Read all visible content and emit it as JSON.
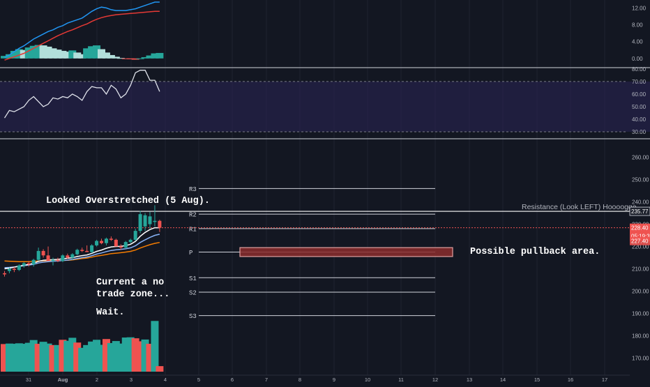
{
  "colors": {
    "background": "#131722",
    "grid": "#1f2330",
    "up": "#26a69a",
    "down": "#ef5350",
    "macd_line": "#2196f3",
    "signal_line": "#e53935",
    "rsi_line": "#e0e3eb",
    "rsi_band": "#2a2556",
    "ema_fast": "#ffffff",
    "ema_mid": "#8ab4f8",
    "ema_slow": "#f57c00",
    "pivot_line": "#d1d4dc",
    "resistance_line": "#ffffff",
    "pullback_zone": "#8b2d2d",
    "price_label_red": "#ef5350",
    "axis_text": "#b2b5be"
  },
  "macd_axis": {
    "ticks": [
      "12.00",
      "8.00",
      "4.00",
      "0.00"
    ]
  },
  "rsi_axis": {
    "ticks": [
      "80.00",
      "70.00",
      "60.00",
      "50.00",
      "40.00",
      "30.00"
    ]
  },
  "price_axis": {
    "ticks": [
      "260.00",
      "250.00",
      "240.00",
      "230.00",
      "220.00",
      "210.00",
      "200.00",
      "190.00",
      "180.00",
      "170.00"
    ],
    "last_price": "228.40",
    "countdown": "05:19:36",
    "ema_value": "227.40",
    "resistance_value": "235.77"
  },
  "time_axis": {
    "labels": [
      "31",
      "Aug",
      "2",
      "3",
      "4",
      "5",
      "6",
      "7",
      "8",
      "9",
      "10",
      "11",
      "12",
      "13",
      "14",
      "15",
      "16",
      "17"
    ]
  },
  "pivots": {
    "labels": [
      "R3",
      "R2",
      "R1",
      "P",
      "S1",
      "S2",
      "S3"
    ]
  },
  "annotations": {
    "overstretched": "Looked Overstretched (5 Aug).",
    "resistance": "Resistance  (Look LEFT) Hoooogge.",
    "pullback": "Possible pullback area.",
    "no_trade_1": "Current a no",
    "no_trade_2": "trade zone...",
    "wait": "Wait."
  },
  "chart_data": [
    {
      "type": "bar",
      "panel": "MACD",
      "series": [
        {
          "name": "histogram",
          "values": [
            0.6,
            1.0,
            1.8,
            2.2,
            2.0,
            2.6,
            3.0,
            3.2,
            3.1,
            2.8,
            2.4,
            2.1,
            1.8,
            1.6,
            1.9,
            1.4,
            1.0,
            2.4,
            2.9,
            3.1,
            2.2,
            1.4,
            0.8,
            0.4,
            0.1,
            -0.1,
            -0.2,
            -0.3,
            0.0,
            0.3,
            0.7,
            1.2,
            1.3
          ]
        },
        {
          "name": "macd",
          "values": [
            0.2,
            0.8,
            1.6,
            2.4,
            3.0,
            3.8,
            4.6,
            5.2,
            5.8,
            6.4,
            6.8,
            7.4,
            7.8,
            8.4,
            8.8,
            9.2,
            9.6,
            10.4,
            11.2,
            11.8,
            12.2,
            12.0,
            11.6,
            11.4,
            11.4,
            11.4,
            11.6,
            11.8,
            12.2,
            12.6,
            13.0,
            13.4,
            13.4
          ]
        },
        {
          "name": "signal",
          "values": [
            -0.4,
            0.0,
            0.4,
            0.8,
            1.2,
            1.8,
            2.4,
            3.0,
            3.6,
            4.2,
            4.8,
            5.4,
            5.9,
            6.4,
            6.8,
            7.3,
            7.8,
            8.2,
            8.8,
            9.3,
            9.7,
            10.0,
            10.2,
            10.4,
            10.5,
            10.6,
            10.7,
            10.8,
            10.9,
            11.0,
            11.1,
            11.2,
            11.2
          ]
        }
      ],
      "ylim": [
        -0.7,
        13.4
      ]
    },
    {
      "type": "line",
      "panel": "RSI",
      "series": [
        {
          "name": "rsi",
          "values": [
            41,
            47,
            46,
            48,
            50,
            55,
            58,
            54,
            50,
            52,
            57,
            56,
            58,
            57,
            60,
            58,
            55,
            62,
            66,
            65,
            65,
            60,
            67,
            64,
            57,
            60,
            67,
            77,
            79,
            79,
            71,
            71,
            62
          ]
        }
      ],
      "ylim": [
        25,
        80.5
      ],
      "levels": [
        70,
        30
      ]
    },
    {
      "type": "candlestick",
      "panel": "Price",
      "series": [
        {
          "name": "price",
          "values": [
            {
              "o": 208,
              "h": 209,
              "l": 206.5,
              "c": 207.5
            },
            {
              "o": 209,
              "h": 210.5,
              "l": 208,
              "c": 210
            },
            {
              "o": 210,
              "h": 210.8,
              "l": 208.5,
              "c": 209.5
            },
            {
              "o": 209.5,
              "h": 212,
              "l": 209,
              "c": 211.5
            },
            {
              "o": 211.5,
              "h": 213,
              "l": 210.5,
              "c": 212.5
            },
            {
              "o": 212.5,
              "h": 213.5,
              "l": 211,
              "c": 212
            },
            {
              "o": 212,
              "h": 214.5,
              "l": 211,
              "c": 214
            },
            {
              "o": 214,
              "h": 219.5,
              "l": 213.5,
              "c": 218
            },
            {
              "o": 218,
              "h": 218.8,
              "l": 215,
              "c": 216
            },
            {
              "o": 216,
              "h": 220,
              "l": 214.5,
              "c": 213.5
            },
            {
              "o": 213.5,
              "h": 215,
              "l": 211.5,
              "c": 214
            },
            {
              "o": 214,
              "h": 215,
              "l": 213,
              "c": 213.5
            },
            {
              "o": 213.5,
              "h": 216.5,
              "l": 213,
              "c": 216
            },
            {
              "o": 216,
              "h": 216.8,
              "l": 214.5,
              "c": 215
            },
            {
              "o": 215,
              "h": 217,
              "l": 214,
              "c": 216.5
            },
            {
              "o": 216.5,
              "h": 219,
              "l": 216,
              "c": 218.5
            },
            {
              "o": 218.5,
              "h": 219.5,
              "l": 217.5,
              "c": 218
            },
            {
              "o": 218,
              "h": 220.5,
              "l": 217.5,
              "c": 217.5
            },
            {
              "o": 217.5,
              "h": 221,
              "l": 217,
              "c": 220.5
            },
            {
              "o": 220.5,
              "h": 223,
              "l": 220,
              "c": 222.5
            },
            {
              "o": 222.5,
              "h": 223.5,
              "l": 221,
              "c": 221.5
            },
            {
              "o": 221.5,
              "h": 224,
              "l": 220.5,
              "c": 223.5
            },
            {
              "o": 223.5,
              "h": 224.5,
              "l": 222.5,
              "c": 223
            },
            {
              "o": 223,
              "h": 223.5,
              "l": 221.5,
              "c": 220
            },
            {
              "o": 220,
              "h": 221,
              "l": 218.5,
              "c": 219.5
            },
            {
              "o": 219.5,
              "h": 222.5,
              "l": 219,
              "c": 222
            },
            {
              "o": 222,
              "h": 223.5,
              "l": 221.5,
              "c": 223
            },
            {
              "o": 223,
              "h": 228,
              "l": 222.5,
              "c": 227
            },
            {
              "o": 227,
              "h": 236,
              "l": 226,
              "c": 234.5
            },
            {
              "o": 229,
              "h": 235,
              "l": 227,
              "c": 234
            },
            {
              "o": 230,
              "h": 235.5,
              "l": 228,
              "c": 233.5
            },
            {
              "o": 231,
              "h": 238.5,
              "l": 229,
              "c": 231.5
            },
            {
              "o": 231.5,
              "h": 232,
              "l": 226.5,
              "c": 228.4
            }
          ]
        },
        {
          "name": "ema_fast",
          "values": [
            210,
            210.3,
            210.7,
            211.2,
            211.6,
            212,
            212.5,
            213.3,
            213.8,
            214,
            214.1,
            214.2,
            214.5,
            214.7,
            215,
            215.5,
            215.9,
            216.2,
            216.9,
            217.8,
            218.4,
            219.2,
            219.8,
            220,
            220.1,
            220.4,
            221,
            222.3,
            224.6,
            226.3,
            227.6,
            228.4,
            228.4
          ]
        },
        {
          "name": "ema_mid",
          "values": [
            210.5,
            210.6,
            210.8,
            211.1,
            211.4,
            211.7,
            212,
            212.6,
            213,
            213.2,
            213.4,
            213.5,
            213.7,
            213.9,
            214.2,
            214.6,
            215,
            215.3,
            215.9,
            216.6,
            217.1,
            217.7,
            218.2,
            218.5,
            218.7,
            219,
            219.4,
            220.3,
            221.8,
            223,
            224.1,
            225,
            225.5
          ]
        },
        {
          "name": "ema_slow",
          "values": [
            213.5,
            213.4,
            213.3,
            213.2,
            213.2,
            213.2,
            213.3,
            213.5,
            213.6,
            213.6,
            213.6,
            213.6,
            213.7,
            213.8,
            214,
            214.3,
            214.6,
            214.8,
            215.2,
            215.7,
            216,
            216.4,
            216.8,
            217,
            217.2,
            217.5,
            217.8,
            218.4,
            219.3,
            220.1,
            220.8,
            221.4,
            221.8
          ]
        }
      ],
      "volume": [
        {
          "v": 11,
          "up": false
        },
        {
          "v": 11.2,
          "up": true
        },
        {
          "v": 11.1,
          "up": true
        },
        {
          "v": 11.3,
          "up": true
        },
        {
          "v": 11.1,
          "up": true
        },
        {
          "v": 11.5,
          "up": true
        },
        {
          "v": 12.6,
          "up": true
        },
        {
          "v": 11.1,
          "up": false
        },
        {
          "v": 11.9,
          "up": true
        },
        {
          "v": 11.2,
          "up": true
        },
        {
          "v": 10.6,
          "up": false
        },
        {
          "v": 10.6,
          "up": true
        },
        {
          "v": 12.7,
          "up": false
        },
        {
          "v": 12.3,
          "up": true
        },
        {
          "v": 13.5,
          "up": true
        },
        {
          "v": 11.6,
          "up": false
        },
        {
          "v": 9.5,
          "up": true
        },
        {
          "v": 10.6,
          "up": true
        },
        {
          "v": 12,
          "up": true
        },
        {
          "v": 12.7,
          "up": true
        },
        {
          "v": 10.7,
          "up": true
        },
        {
          "v": 13,
          "up": false
        },
        {
          "v": 11.4,
          "up": true
        },
        {
          "v": 12.2,
          "up": true
        },
        {
          "v": 11.2,
          "up": true
        },
        {
          "v": 13.6,
          "up": true
        },
        {
          "v": 13.7,
          "up": true
        },
        {
          "v": 13.3,
          "up": false
        },
        {
          "v": 12.1,
          "up": false
        },
        {
          "v": 12.8,
          "up": true
        },
        {
          "v": 11.1,
          "up": false
        },
        {
          "v": 20.2,
          "up": true
        },
        {
          "v": 2.2,
          "up": false
        }
      ],
      "pivots": {
        "R3": 246,
        "R2": 234.5,
        "R1": 228,
        "P": 217.5,
        "S1": 206,
        "S2": 199.5,
        "S3": 189
      },
      "resistance": 235.77,
      "pullback_zone": [
        215.5,
        219.5
      ],
      "last_price": 228.4,
      "ylim": [
        162.3,
        268
      ]
    }
  ]
}
